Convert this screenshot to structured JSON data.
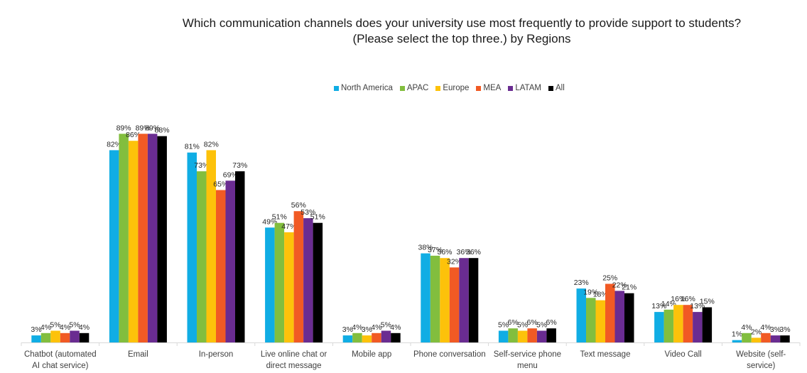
{
  "chart_data": {
    "type": "bar",
    "title": "Which communication channels does your university use most frequently to provide support to students?",
    "subtitle": "(Please select the top three.) by Regions",
    "xlabel": "",
    "ylabel": "",
    "ylim": [
      0,
      100
    ],
    "grid": false,
    "legend_position": "top",
    "categories": [
      "Chatbot (automated AI chat service)",
      "Email",
      "In-person",
      "Live online chat or direct message",
      "Mobile app",
      "Phone conversation",
      "Self-service phone menu",
      "Text message",
      "Video Call",
      "Website (self-service)"
    ],
    "series": [
      {
        "name": "North America",
        "color": "#10ADE4",
        "values": [
          3,
          82,
          81,
          49,
          3,
          38,
          5,
          23,
          13,
          1
        ]
      },
      {
        "name": "APAC",
        "color": "#82BE3E",
        "values": [
          4,
          89,
          73,
          51,
          4,
          37,
          6,
          19,
          14,
          4
        ]
      },
      {
        "name": "Europe",
        "color": "#FDC20A",
        "values": [
          5,
          86,
          82,
          47,
          3,
          36,
          5,
          18,
          16,
          2
        ]
      },
      {
        "name": "MEA",
        "color": "#F15A24",
        "values": [
          4,
          89,
          65,
          56,
          4,
          32,
          6,
          25,
          16,
          4
        ]
      },
      {
        "name": "LATAM",
        "color": "#6A2C91",
        "values": [
          5,
          89,
          69,
          53,
          5,
          36,
          5,
          22,
          13,
          3
        ]
      },
      {
        "name": "All",
        "color": "#000000",
        "values": [
          4,
          88,
          73,
          51,
          4,
          36,
          6,
          21,
          15,
          3
        ]
      }
    ],
    "value_suffix": "%"
  }
}
